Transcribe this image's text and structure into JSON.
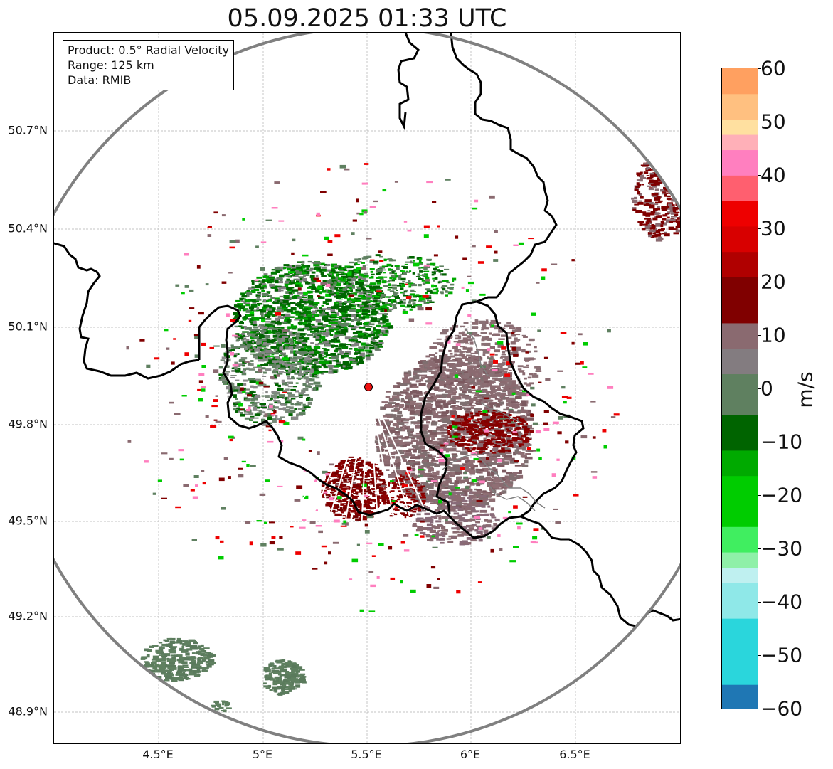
{
  "title": "05.09.2025 01:33 UTC",
  "info": {
    "product": "Product: 0.5° Radial Velocity",
    "range": "Range: 125 km",
    "data": "Data: RMIB"
  },
  "lat_ticks": [
    "50.7°N",
    "50.4°N",
    "50.1°N",
    "49.8°N",
    "49.5°N",
    "49.2°N",
    "48.9°N"
  ],
  "lon_ticks": [
    "4.5°E",
    "5°E",
    "5.5°E",
    "6°E",
    "6.5°E"
  ],
  "colorbar": {
    "unit": "m/s",
    "ticks": [
      "60",
      "50",
      "40",
      "30",
      "20",
      "10",
      "0",
      "−10",
      "−20",
      "−30",
      "−40",
      "−50",
      "−60"
    ],
    "min": -60,
    "max": 60,
    "colors": {
      "blue": "#1f77b4",
      "cyan": "#2ad6dc",
      "green": "#00cc00",
      "dark_green": "#006400",
      "gray_green": "#5f8060",
      "gray_brown": "#8a6a70",
      "maroon": "#800000",
      "red": "#ee0000",
      "pink": "#ff7fbf",
      "orange": "#ffa060"
    }
  },
  "map": {
    "lat_range": [
      48.8,
      50.98
    ],
    "lon_range": [
      4.0,
      7.0
    ],
    "radar_site": {
      "lat": 49.914,
      "lon": 5.506
    },
    "range_ring_color": "#808080",
    "border_color": "#000000",
    "grid": true
  }
}
